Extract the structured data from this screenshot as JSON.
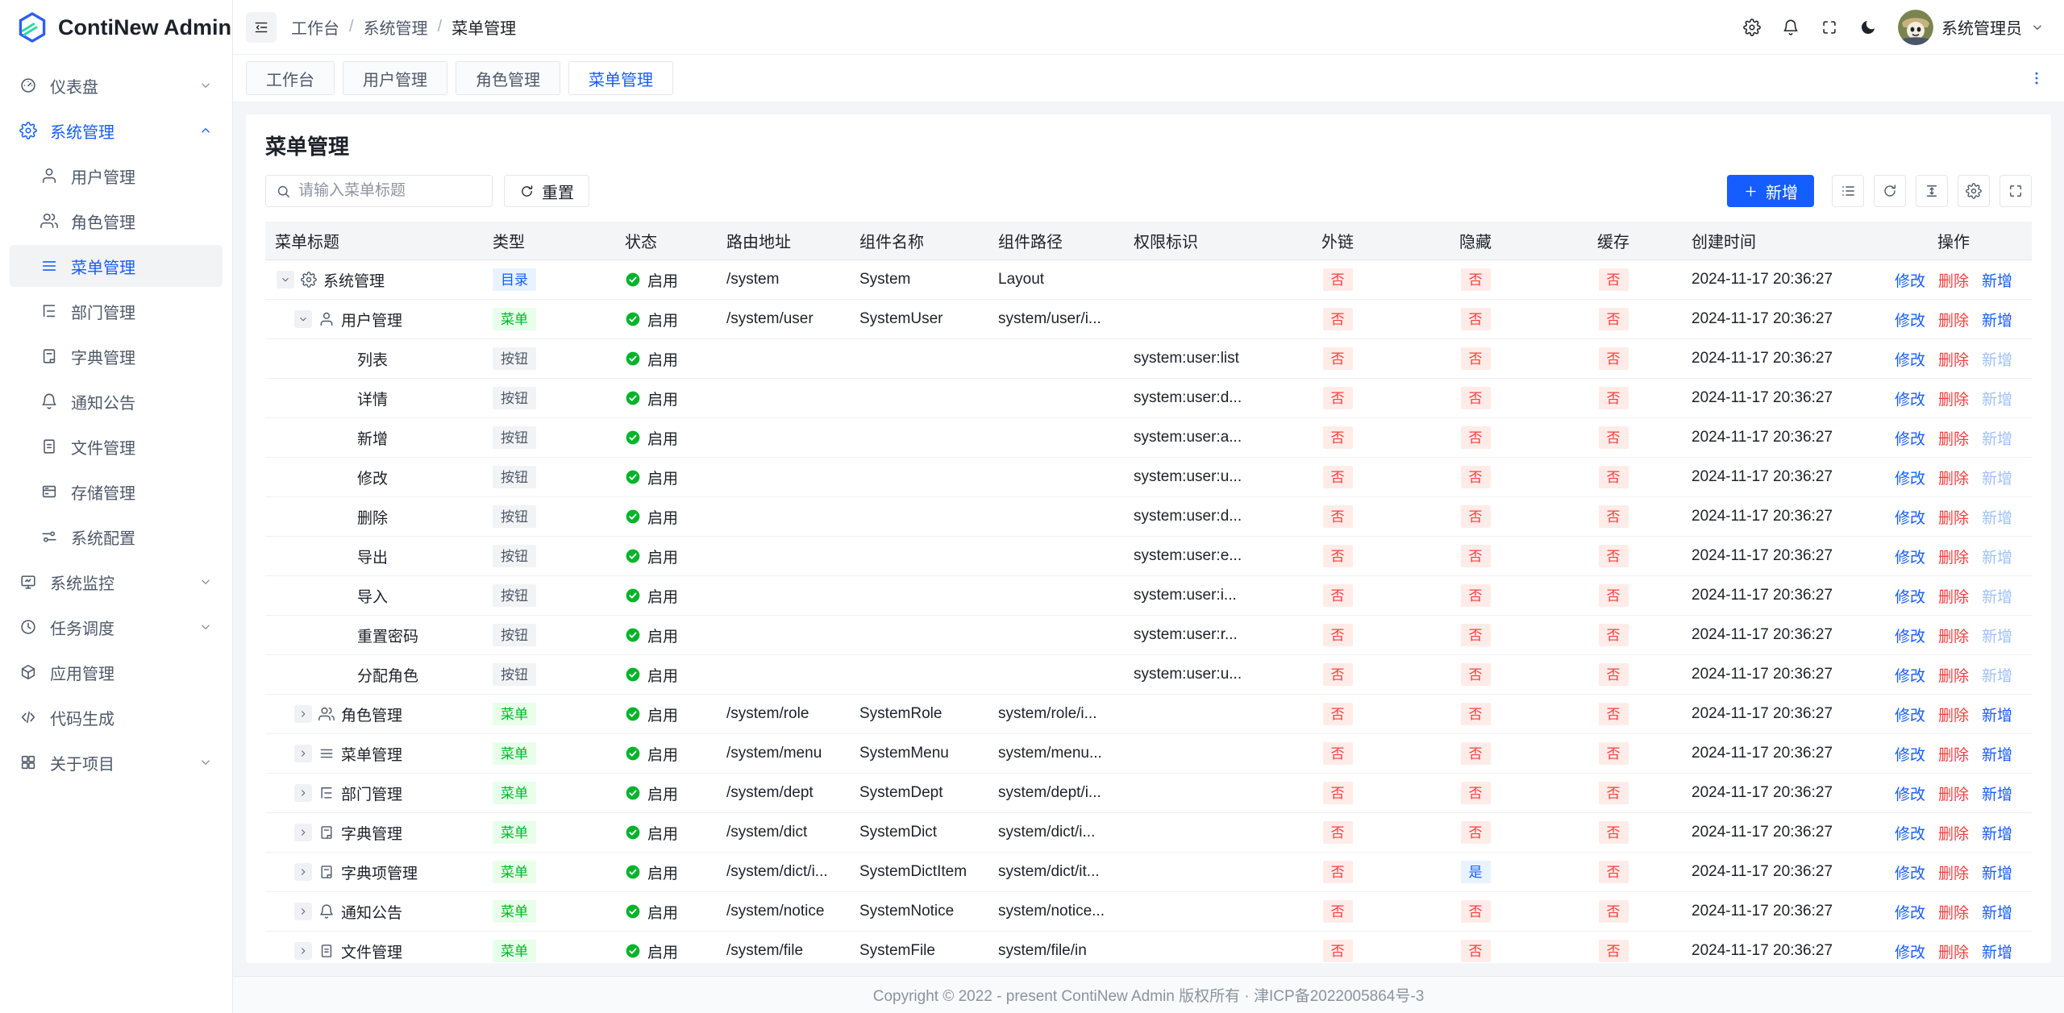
{
  "app": {
    "name": "ContiNew Admin"
  },
  "topbar": {
    "breadcrumb": [
      "工作台",
      "系统管理",
      "菜单管理"
    ],
    "user_name": "系统管理员"
  },
  "sidebar": {
    "items": [
      {
        "name": "dashboard",
        "label": "仪表盘",
        "icon": "dashboard",
        "chevron": "down"
      },
      {
        "name": "system",
        "label": "系统管理",
        "icon": "gear",
        "chevron": "up",
        "active": true,
        "children": [
          {
            "name": "user-mgmt",
            "label": "用户管理",
            "icon": "user"
          },
          {
            "name": "role-mgmt",
            "label": "角色管理",
            "icon": "users"
          },
          {
            "name": "menu-mgmt",
            "label": "菜单管理",
            "icon": "menu",
            "active": true
          },
          {
            "name": "dept-mgmt",
            "label": "部门管理",
            "icon": "tree"
          },
          {
            "name": "dict-mgmt",
            "label": "字典管理",
            "icon": "book"
          },
          {
            "name": "notice-mgmt",
            "label": "通知公告",
            "icon": "bell"
          },
          {
            "name": "file-mgmt",
            "label": "文件管理",
            "icon": "file"
          },
          {
            "name": "storage-mgmt",
            "label": "存储管理",
            "icon": "storage"
          },
          {
            "name": "system-config",
            "label": "系统配置",
            "icon": "sliders"
          }
        ]
      },
      {
        "name": "monitor",
        "label": "系统监控",
        "icon": "monitor",
        "chevron": "down"
      },
      {
        "name": "schedule",
        "label": "任务调度",
        "icon": "clock",
        "chevron": "down"
      },
      {
        "name": "app-mgmt",
        "label": "应用管理",
        "icon": "box"
      },
      {
        "name": "codegen",
        "label": "代码生成",
        "icon": "code"
      },
      {
        "name": "about",
        "label": "关于项目",
        "icon": "grid",
        "chevron": "down"
      }
    ]
  },
  "tabs": {
    "items": [
      {
        "name": "workbench",
        "label": "工作台"
      },
      {
        "name": "user-mgmt",
        "label": "用户管理"
      },
      {
        "name": "role-mgmt",
        "label": "角色管理"
      },
      {
        "name": "menu-mgmt",
        "label": "菜单管理",
        "active": true
      }
    ]
  },
  "page": {
    "title": "菜单管理",
    "search_placeholder": "请输入菜单标题",
    "reset_label": "重置",
    "add_label": "新增"
  },
  "table": {
    "columns": [
      "菜单标题",
      "类型",
      "状态",
      "路由地址",
      "组件名称",
      "组件路径",
      "权限标识",
      "外链",
      "隐藏",
      "缓存",
      "创建时间",
      "操作"
    ],
    "status_label": "启用",
    "actions": {
      "edit": "修改",
      "delete": "删除",
      "add": "新增"
    },
    "rows": [
      {
        "name": "system",
        "level": 0,
        "expander": "down",
        "icon": "gear",
        "title": "系统管理",
        "type": "目录",
        "route": "/system",
        "component": "System",
        "path": "Layout",
        "permission": "",
        "external": "否",
        "hidden": "否",
        "cache": "否",
        "created": "2024-11-17 20:36:27",
        "add_disabled": false
      },
      {
        "name": "user",
        "level": 1,
        "expander": "down",
        "icon": "user",
        "title": "用户管理",
        "type": "菜单",
        "route": "/system/user",
        "component": "SystemUser",
        "path": "system/user/i...",
        "permission": "",
        "external": "否",
        "hidden": "否",
        "cache": "否",
        "created": "2024-11-17 20:36:27",
        "add_disabled": false
      },
      {
        "name": "user-list",
        "level": 2,
        "expander": null,
        "icon": null,
        "title": "列表",
        "type": "按钮",
        "route": "",
        "component": "",
        "path": "",
        "permission": "system:user:list",
        "external": "否",
        "hidden": "否",
        "cache": "否",
        "created": "2024-11-17 20:36:27",
        "add_disabled": true
      },
      {
        "name": "user-detail",
        "level": 2,
        "expander": null,
        "icon": null,
        "title": "详情",
        "type": "按钮",
        "route": "",
        "component": "",
        "path": "",
        "permission": "system:user:d...",
        "external": "否",
        "hidden": "否",
        "cache": "否",
        "created": "2024-11-17 20:36:27",
        "add_disabled": true
      },
      {
        "name": "user-add",
        "level": 2,
        "expander": null,
        "icon": null,
        "title": "新增",
        "type": "按钮",
        "route": "",
        "component": "",
        "path": "",
        "permission": "system:user:a...",
        "external": "否",
        "hidden": "否",
        "cache": "否",
        "created": "2024-11-17 20:36:27",
        "add_disabled": true
      },
      {
        "name": "user-update",
        "level": 2,
        "expander": null,
        "icon": null,
        "title": "修改",
        "type": "按钮",
        "route": "",
        "component": "",
        "path": "",
        "permission": "system:user:u...",
        "external": "否",
        "hidden": "否",
        "cache": "否",
        "created": "2024-11-17 20:36:27",
        "add_disabled": true
      },
      {
        "name": "user-delete",
        "level": 2,
        "expander": null,
        "icon": null,
        "title": "删除",
        "type": "按钮",
        "route": "",
        "component": "",
        "path": "",
        "permission": "system:user:d...",
        "external": "否",
        "hidden": "否",
        "cache": "否",
        "created": "2024-11-17 20:36:27",
        "add_disabled": true
      },
      {
        "name": "user-export",
        "level": 2,
        "expander": null,
        "icon": null,
        "title": "导出",
        "type": "按钮",
        "route": "",
        "component": "",
        "path": "",
        "permission": "system:user:e...",
        "external": "否",
        "hidden": "否",
        "cache": "否",
        "created": "2024-11-17 20:36:27",
        "add_disabled": true
      },
      {
        "name": "user-import",
        "level": 2,
        "expander": null,
        "icon": null,
        "title": "导入",
        "type": "按钮",
        "route": "",
        "component": "",
        "path": "",
        "permission": "system:user:i...",
        "external": "否",
        "hidden": "否",
        "cache": "否",
        "created": "2024-11-17 20:36:27",
        "add_disabled": true
      },
      {
        "name": "user-resetpwd",
        "level": 2,
        "expander": null,
        "icon": null,
        "title": "重置密码",
        "type": "按钮",
        "route": "",
        "component": "",
        "path": "",
        "permission": "system:user:r...",
        "external": "否",
        "hidden": "否",
        "cache": "否",
        "created": "2024-11-17 20:36:27",
        "add_disabled": true
      },
      {
        "name": "user-assign",
        "level": 2,
        "expander": null,
        "icon": null,
        "title": "分配角色",
        "type": "按钮",
        "route": "",
        "component": "",
        "path": "",
        "permission": "system:user:u...",
        "external": "否",
        "hidden": "否",
        "cache": "否",
        "created": "2024-11-17 20:36:27",
        "add_disabled": true
      },
      {
        "name": "role",
        "level": 1,
        "expander": "right",
        "icon": "users",
        "title": "角色管理",
        "type": "菜单",
        "route": "/system/role",
        "component": "SystemRole",
        "path": "system/role/i...",
        "permission": "",
        "external": "否",
        "hidden": "否",
        "cache": "否",
        "created": "2024-11-17 20:36:27",
        "add_disabled": false
      },
      {
        "name": "menu",
        "level": 1,
        "expander": "right",
        "icon": "menu",
        "title": "菜单管理",
        "type": "菜单",
        "route": "/system/menu",
        "component": "SystemMenu",
        "path": "system/menu...",
        "permission": "",
        "external": "否",
        "hidden": "否",
        "cache": "否",
        "created": "2024-11-17 20:36:27",
        "add_disabled": false
      },
      {
        "name": "dept",
        "level": 1,
        "expander": "right",
        "icon": "tree",
        "title": "部门管理",
        "type": "菜单",
        "route": "/system/dept",
        "component": "SystemDept",
        "path": "system/dept/i...",
        "permission": "",
        "external": "否",
        "hidden": "否",
        "cache": "否",
        "created": "2024-11-17 20:36:27",
        "add_disabled": false
      },
      {
        "name": "dict",
        "level": 1,
        "expander": "right",
        "icon": "book",
        "title": "字典管理",
        "type": "菜单",
        "route": "/system/dict",
        "component": "SystemDict",
        "path": "system/dict/i...",
        "permission": "",
        "external": "否",
        "hidden": "否",
        "cache": "否",
        "created": "2024-11-17 20:36:27",
        "add_disabled": false
      },
      {
        "name": "dict-item",
        "level": 1,
        "expander": "right",
        "icon": "book",
        "title": "字典项管理",
        "type": "菜单",
        "route": "/system/dict/i...",
        "component": "SystemDictItem",
        "path": "system/dict/it...",
        "permission": "",
        "external": "否",
        "hidden": "是",
        "cache": "否",
        "created": "2024-11-17 20:36:27",
        "add_disabled": false
      },
      {
        "name": "notice",
        "level": 1,
        "expander": "right",
        "icon": "bell",
        "title": "通知公告",
        "type": "菜单",
        "route": "/system/notice",
        "component": "SystemNotice",
        "path": "system/notice...",
        "permission": "",
        "external": "否",
        "hidden": "否",
        "cache": "否",
        "created": "2024-11-17 20:36:27",
        "add_disabled": false
      },
      {
        "name": "file",
        "level": 1,
        "expander": "right",
        "icon": "file",
        "title": "文件管理",
        "type": "菜单",
        "route": "/system/file",
        "component": "SystemFile",
        "path": "system/file/in",
        "permission": "",
        "external": "否",
        "hidden": "否",
        "cache": "否",
        "created": "2024-11-17 20:36:27",
        "add_disabled": false
      }
    ]
  },
  "footer": {
    "copyright": "Copyright © 2022 - present ContiNew Admin 版权所有 · 津ICP备2022005864号-3"
  },
  "colors": {
    "primary": "#165dff",
    "success": "#00b42a",
    "danger": "#f53f3f"
  }
}
